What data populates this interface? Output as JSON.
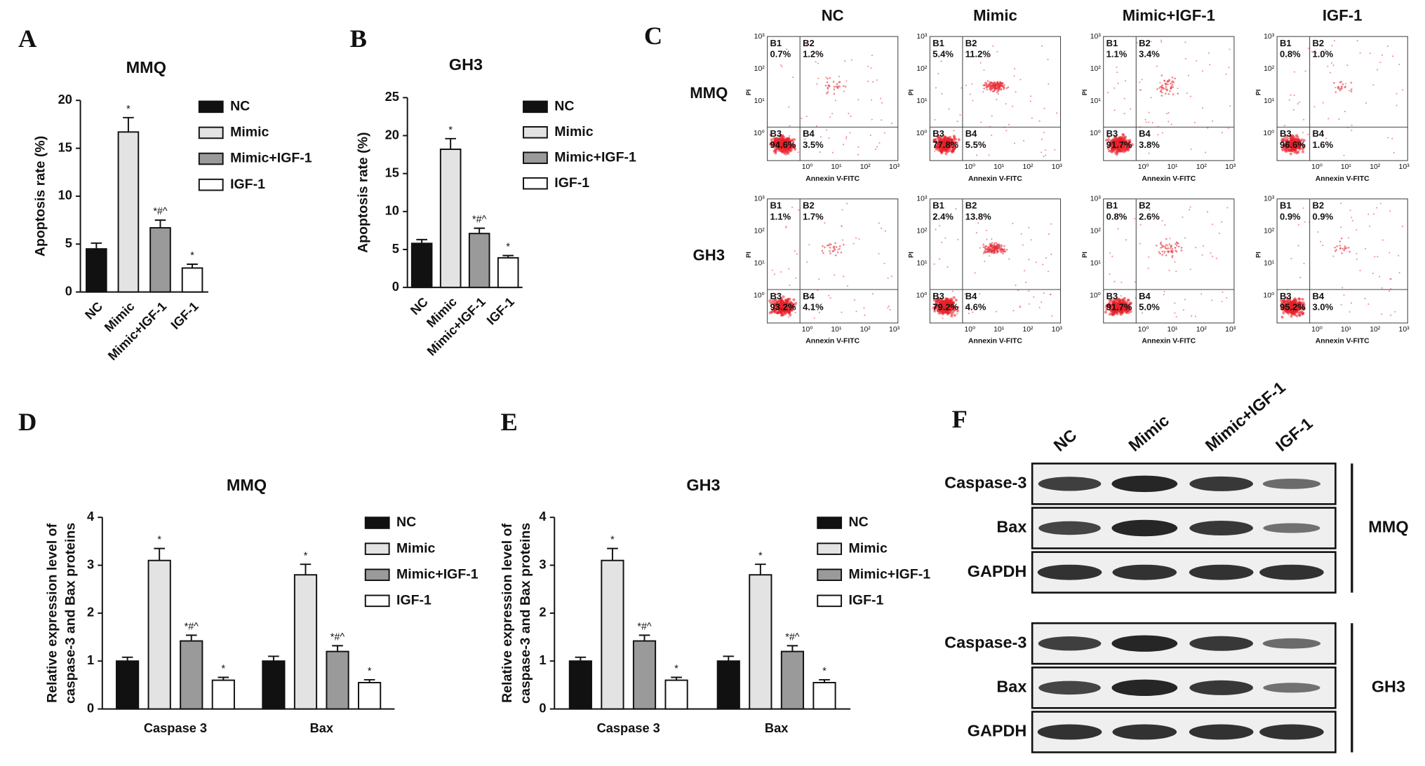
{
  "chart_data": [
    {
      "type": "bar",
      "panel": "A",
      "title": "MMQ",
      "y_label": "Apoptosis rate (%)",
      "categories": [
        "NC",
        "Mimic",
        "Mimic+IGF-1",
        "IGF-1"
      ],
      "values": [
        4.5,
        16.7,
        6.7,
        2.5
      ],
      "errors": [
        0.6,
        1.5,
        0.8,
        0.4
      ],
      "annotations": [
        null,
        "*",
        "*#^",
        "*"
      ],
      "colors": [
        "#111111",
        "#e3e3e3",
        "#9a9a9a",
        "#ffffff"
      ],
      "ylim": [
        0,
        20
      ],
      "yticks": [
        0,
        5,
        10,
        15,
        20
      ]
    },
    {
      "type": "bar",
      "panel": "B",
      "title": "GH3",
      "y_label": "Apoptosis rate (%)",
      "categories": [
        "NC",
        "Mimic",
        "Mimic+IGF-1",
        "IGF-1"
      ],
      "values": [
        5.8,
        18.2,
        7.1,
        3.9
      ],
      "errors": [
        0.5,
        1.4,
        0.7,
        0.3
      ],
      "annotations": [
        null,
        "*",
        "*#^",
        "*"
      ],
      "colors": [
        "#111111",
        "#e3e3e3",
        "#9a9a9a",
        "#ffffff"
      ],
      "ylim": [
        0,
        25
      ],
      "yticks": [
        0,
        5,
        10,
        15,
        20,
        25
      ]
    },
    {
      "type": "bar",
      "panel": "D",
      "title": "MMQ",
      "y_label": [
        "Relative expression level of",
        "caspase-3 and  Bax proteins"
      ],
      "categories": [
        "Caspase 3",
        "Bax"
      ],
      "series": [
        {
          "name": "NC",
          "color": "#111111",
          "values": [
            1.0,
            1.0
          ],
          "errors": [
            0.08,
            0.1
          ],
          "annotations": [
            null,
            null
          ]
        },
        {
          "name": "Mimic",
          "color": "#e3e3e3",
          "values": [
            3.1,
            2.8
          ],
          "errors": [
            0.25,
            0.22
          ],
          "annotations": [
            "*",
            "*"
          ]
        },
        {
          "name": "Mimic+IGF-1",
          "color": "#9a9a9a",
          "values": [
            1.42,
            1.2
          ],
          "errors": [
            0.12,
            0.12
          ],
          "annotations": [
            "*#^",
            "*#^"
          ]
        },
        {
          "name": "IGF-1",
          "color": "#ffffff",
          "values": [
            0.6,
            0.55
          ],
          "errors": [
            0.06,
            0.06
          ],
          "annotations": [
            "*",
            "*"
          ]
        }
      ],
      "ylim": [
        0,
        4
      ],
      "yticks": [
        0,
        1,
        2,
        3,
        4
      ]
    },
    {
      "type": "bar",
      "panel": "E",
      "title": "GH3",
      "y_label": [
        "Relative expression level of",
        "caspase-3 and Bax proteins"
      ],
      "categories": [
        "Caspase 3",
        "Bax"
      ],
      "series": [
        {
          "name": "NC",
          "color": "#111111",
          "values": [
            1.0,
            1.0
          ],
          "errors": [
            0.08,
            0.1
          ],
          "annotations": [
            null,
            null
          ]
        },
        {
          "name": "Mimic",
          "color": "#e3e3e3",
          "values": [
            3.1,
            2.8
          ],
          "errors": [
            0.25,
            0.22
          ],
          "annotations": [
            "*",
            "*"
          ]
        },
        {
          "name": "Mimic+IGF-1",
          "color": "#9a9a9a",
          "values": [
            1.42,
            1.2
          ],
          "errors": [
            0.12,
            0.12
          ],
          "annotations": [
            "*#^",
            "*#^"
          ]
        },
        {
          "name": "IGF-1",
          "color": "#ffffff",
          "values": [
            0.6,
            0.55
          ],
          "errors": [
            0.06,
            0.06
          ],
          "annotations": [
            "*",
            "*"
          ]
        }
      ],
      "ylim": [
        0,
        4
      ],
      "yticks": [
        0,
        1,
        2,
        3,
        4
      ]
    }
  ],
  "flow_cytometry": {
    "panel": "C",
    "columns": [
      "NC",
      "Mimic",
      "Mimic+IGF-1",
      "IGF-1"
    ],
    "rows": [
      "MMQ",
      "GH3"
    ],
    "x_label": "Annexin V-FITC",
    "y_label": "PI",
    "tick_labels": [
      "10⁰",
      "10¹",
      "10²",
      "10³"
    ],
    "quadrants": [
      "B1",
      "B2",
      "B3",
      "B4"
    ],
    "plots": [
      [
        [
          "0.7%",
          "1.2%",
          "94.6%",
          "3.5%"
        ],
        [
          "5.4%",
          "11.2%",
          "77.8%",
          "5.5%"
        ],
        [
          "1.1%",
          "3.4%",
          "91.7%",
          "3.8%"
        ],
        [
          "0.8%",
          "1.0%",
          "96.6%",
          "1.6%"
        ]
      ],
      [
        [
          "1.1%",
          "1.7%",
          "93.2%",
          "4.1%"
        ],
        [
          "2.4%",
          "13.8%",
          "79.2%",
          "4.6%"
        ],
        [
          "0.8%",
          "2.6%",
          "91.7%",
          "5.0%"
        ],
        [
          "0.9%",
          "0.9%",
          "95.2%",
          "3.0%"
        ]
      ]
    ]
  },
  "western_blot": {
    "panel": "F",
    "lanes": [
      "NC",
      "Mimic",
      "Mimic+IGF-1",
      "IGF-1"
    ],
    "groups": [
      {
        "name": "MMQ",
        "rows": [
          "Caspase-3",
          "Bax",
          "GAPDH"
        ]
      },
      {
        "name": "GH3",
        "rows": [
          "Caspase-3",
          "Bax",
          "GAPDH"
        ]
      }
    ]
  }
}
